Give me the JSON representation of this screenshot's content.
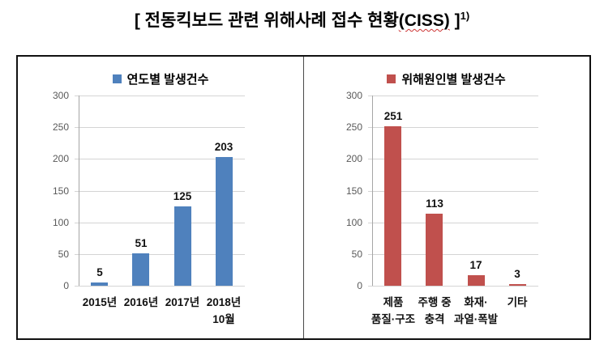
{
  "page": {
    "title": {
      "prefix": "[ 전동킥보드 관련 위해사례 접수 현황",
      "highlighted": "(CISS)",
      "suffix": " ]",
      "footnote_marker": "1)"
    }
  },
  "colors": {
    "left_bar": "#4f81bd",
    "right_bar": "#c0504d",
    "gridline": "#d4d4d4",
    "axis": "#a6a6a6",
    "tick_label": "#595959",
    "data_label": "#111111",
    "panel_border": "#111111",
    "squiggle": "#cc3333"
  },
  "chart_data": [
    {
      "type": "bar",
      "title": "연도별 발생건수",
      "legend": {
        "label": "연도별 발생건수",
        "position": "top",
        "marker_color": "#4f81bd"
      },
      "categories": [
        "2015년",
        "2016년",
        "2017년",
        "2018년\n10월"
      ],
      "values": [
        5,
        51,
        125,
        203
      ],
      "bar_color": "#4f81bd",
      "xlabel": "",
      "ylabel": "",
      "ylim": [
        0,
        300
      ],
      "yticks": [
        0,
        50,
        100,
        150,
        200,
        250,
        300
      ],
      "grid": true,
      "data_labels": true
    },
    {
      "type": "bar",
      "title": "위해원인별 발생건수",
      "legend": {
        "label": "위해원인별 발생건수",
        "position": "top",
        "marker_color": "#c0504d"
      },
      "categories": [
        "제품\n품질·구조",
        "주행 중\n충격",
        "화재·\n과열·폭발",
        "기타"
      ],
      "values": [
        251,
        113,
        17,
        3
      ],
      "bar_color": "#c0504d",
      "xlabel": "",
      "ylabel": "",
      "ylim": [
        0,
        300
      ],
      "yticks": [
        0,
        50,
        100,
        150,
        200,
        250,
        300
      ],
      "grid": true,
      "data_labels": true
    }
  ]
}
